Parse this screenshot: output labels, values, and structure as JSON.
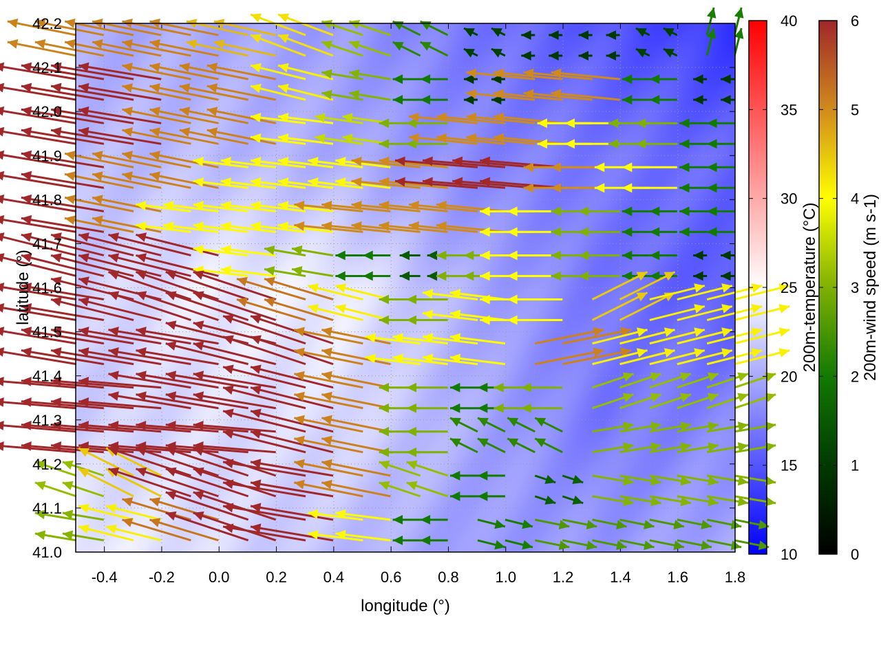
{
  "chart_data": {
    "type": "heatmap",
    "xlabel": "longitude (°)",
    "ylabel": "latitude (°)",
    "xlim": [
      -0.5,
      1.8
    ],
    "ylim": [
      41.0,
      42.2
    ],
    "xticks": [
      "-0.4",
      "-0.2",
      "0.0",
      "0.2",
      "0.4",
      "0.6",
      "0.8",
      "1.0",
      "1.2",
      "1.4",
      "1.6",
      "1.8"
    ],
    "yticks": [
      "41.0",
      "41.1",
      "41.2",
      "41.3",
      "41.4",
      "41.5",
      "41.6",
      "41.7",
      "41.8",
      "41.9",
      "42.0",
      "42.1",
      "42.2"
    ],
    "grid": true,
    "temperature": {
      "label": "200m-temperature (°C)",
      "range": [
        10,
        40
      ],
      "ticks": [
        "10",
        "15",
        "20",
        "25",
        "30",
        "35",
        "40"
      ],
      "colormap": [
        "#0000ff",
        "#ffffff",
        "#ff0000"
      ],
      "lon": [
        -0.5,
        -0.04,
        0.42,
        0.88,
        1.34,
        1.8
      ],
      "lat": [
        42.2,
        41.9,
        41.6,
        41.3,
        41.0
      ],
      "values": [
        [
          20,
          20,
          19,
          17,
          15,
          13
        ],
        [
          21,
          21,
          20,
          18,
          17,
          16
        ],
        [
          22,
          24,
          24,
          20,
          17,
          15
        ],
        [
          22,
          23,
          23,
          20,
          17,
          18
        ],
        [
          24,
          23,
          21,
          19,
          19,
          20
        ]
      ]
    },
    "wind": {
      "label": "200m-wind speed (m s-1)",
      "range": [
        0,
        6
      ],
      "ticks": [
        "0",
        "1",
        "2",
        "3",
        "4",
        "5",
        "6"
      ],
      "colormap": [
        "#000000",
        "#003a00",
        "#127a00",
        "#80b000",
        "#ffff00",
        "#d08c1c",
        "#a0282a"
      ],
      "lon": [
        -0.45,
        -0.25,
        -0.05,
        0.15,
        0.35,
        0.55,
        0.75,
        0.95,
        1.15,
        1.35,
        1.55,
        1.75
      ],
      "lat": [
        42.15,
        42.05,
        41.95,
        41.85,
        41.75,
        41.65,
        41.55,
        41.45,
        41.35,
        41.25,
        41.15,
        41.05
      ],
      "uv": [
        [
          [
            -5,
            1
          ],
          [
            -5,
            1
          ],
          [
            -5,
            1
          ],
          [
            -4.5,
            1
          ],
          [
            -4,
            1.5
          ],
          [
            -3,
            1
          ],
          [
            -2,
            1
          ],
          [
            -1,
            0.5
          ],
          [
            -1,
            0
          ],
          [
            -1,
            0
          ],
          [
            -1,
            0.5
          ],
          [
            0.5,
            2
          ]
        ],
        [
          [
            -6,
            1
          ],
          [
            -6,
            1
          ],
          [
            -5,
            1
          ],
          [
            -5,
            1
          ],
          [
            -4,
            1
          ],
          [
            -3,
            0.5
          ],
          [
            -2,
            0
          ],
          [
            -1,
            0
          ],
          [
            -5,
            0.5
          ],
          [
            -5,
            0.5
          ],
          [
            -2,
            0
          ],
          [
            -1,
            0
          ]
        ],
        [
          [
            -6,
            1
          ],
          [
            -6,
            1
          ],
          [
            -5,
            1
          ],
          [
            -5,
            1
          ],
          [
            -4,
            0.5
          ],
          [
            -3.5,
            0.5
          ],
          [
            -3,
            0
          ],
          [
            -5,
            0.5
          ],
          [
            -5,
            0.5
          ],
          [
            -4,
            0
          ],
          [
            -3,
            0
          ],
          [
            -2,
            0
          ]
        ],
        [
          [
            -6,
            1
          ],
          [
            -5,
            1
          ],
          [
            -5,
            1
          ],
          [
            -4,
            0.5
          ],
          [
            -4,
            0.5
          ],
          [
            -4,
            0.5
          ],
          [
            -5,
            0.5
          ],
          [
            -6,
            0.5
          ],
          [
            -6,
            0.5
          ],
          [
            -5,
            0
          ],
          [
            -4,
            0
          ],
          [
            -2,
            0
          ]
        ],
        [
          [
            -6,
            1
          ],
          [
            -5,
            1
          ],
          [
            -4,
            0.5
          ],
          [
            -4,
            0.5
          ],
          [
            -4,
            0.5
          ],
          [
            -5,
            0.5
          ],
          [
            -5,
            0.5
          ],
          [
            -5,
            0.5
          ],
          [
            -4,
            0
          ],
          [
            -3,
            0
          ],
          [
            -2,
            0
          ],
          [
            -2,
            0
          ]
        ],
        [
          [
            -6,
            1.5
          ],
          [
            -6,
            1.5
          ],
          [
            -6,
            1.5
          ],
          [
            -4,
            0.5
          ],
          [
            -3,
            0.5
          ],
          [
            -2,
            0
          ],
          [
            -1.5,
            0
          ],
          [
            -3,
            0
          ],
          [
            -4,
            0
          ],
          [
            -3,
            0
          ],
          [
            -2,
            0
          ],
          [
            -1,
            0
          ]
        ],
        [
          [
            -6,
            1
          ],
          [
            -6,
            1.5
          ],
          [
            -6,
            2
          ],
          [
            -6,
            2
          ],
          [
            -5,
            1.5
          ],
          [
            -4,
            1
          ],
          [
            -3,
            0
          ],
          [
            -4,
            0.5
          ],
          [
            -4,
            0
          ],
          [
            4,
            2
          ],
          [
            4,
            1
          ],
          [
            4,
            1
          ]
        ],
        [
          [
            -6,
            1
          ],
          [
            -6,
            1
          ],
          [
            -6,
            1
          ],
          [
            -6,
            1.5
          ],
          [
            -6,
            2
          ],
          [
            -5,
            1
          ],
          [
            -4,
            0.5
          ],
          [
            -4,
            0.5
          ],
          [
            5,
            1
          ],
          [
            4,
            1
          ],
          [
            4,
            1
          ],
          [
            4,
            1
          ]
        ],
        [
          [
            -6,
            0.5
          ],
          [
            -6,
            0.5
          ],
          [
            -6,
            1
          ],
          [
            -6,
            1
          ],
          [
            -6,
            1.5
          ],
          [
            -5,
            1
          ],
          [
            -3,
            0
          ],
          [
            -2,
            0
          ],
          [
            -3,
            0
          ],
          [
            3,
            1
          ],
          [
            3,
            1
          ],
          [
            3,
            1
          ]
        ],
        [
          [
            -6,
            0.5
          ],
          [
            -6,
            0.5
          ],
          [
            -6,
            0.5
          ],
          [
            -6,
            0.5
          ],
          [
            -6,
            1.5
          ],
          [
            -5,
            1
          ],
          [
            -3,
            0
          ],
          [
            -2,
            1
          ],
          [
            -2,
            1
          ],
          [
            3,
            0.5
          ],
          [
            3,
            0.5
          ],
          [
            3,
            0.5
          ]
        ],
        [
          [
            -3,
            1
          ],
          [
            -4,
            2
          ],
          [
            -6,
            2
          ],
          [
            -6,
            2
          ],
          [
            -6,
            1
          ],
          [
            -5,
            1
          ],
          [
            -3,
            1
          ],
          [
            -2,
            0
          ],
          [
            1.5,
            -0.5
          ],
          [
            3,
            -0.5
          ],
          [
            3,
            -0.5
          ],
          [
            3,
            -0.5
          ]
        ],
        [
          [
            -3,
            0.5
          ],
          [
            -4,
            1
          ],
          [
            -5,
            1.5
          ],
          [
            -6,
            2
          ],
          [
            -6,
            1
          ],
          [
            -4,
            0.5
          ],
          [
            -2,
            0
          ],
          [
            2,
            -0.5
          ],
          [
            2.5,
            -0.5
          ],
          [
            2.5,
            -0.5
          ],
          [
            2.5,
            -0.5
          ],
          [
            2.5,
            -0.5
          ]
        ]
      ]
    }
  }
}
